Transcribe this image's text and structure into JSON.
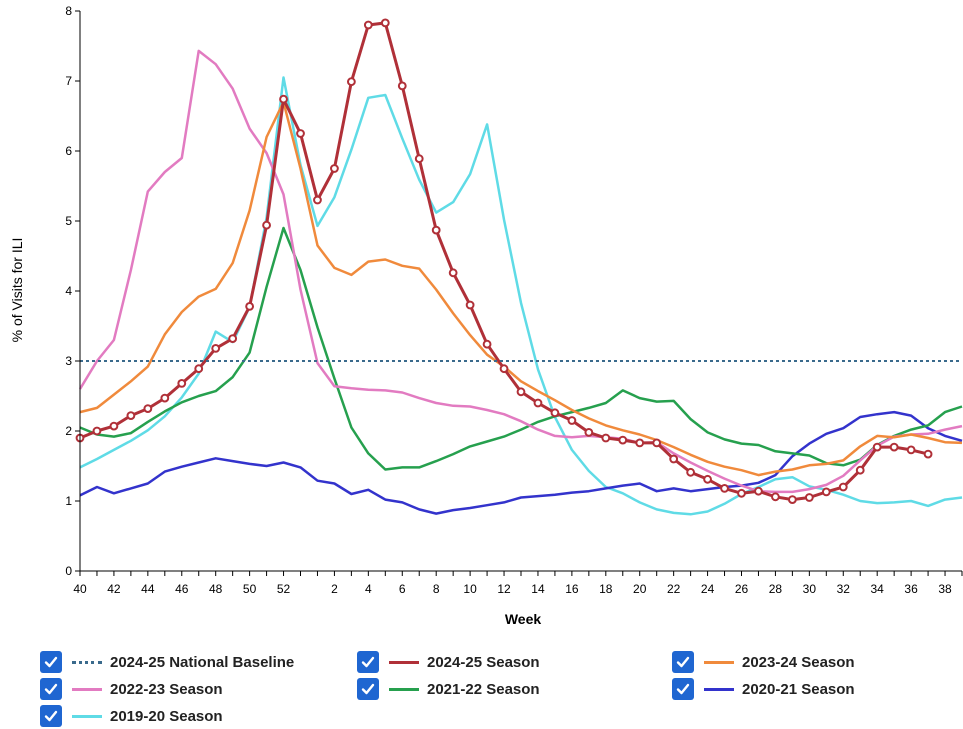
{
  "chart_data": {
    "type": "line",
    "xlabel": "Week",
    "ylabel": "% of Visits for ILI",
    "ylim": [
      0,
      8
    ],
    "yticks": [
      0,
      1,
      2,
      3,
      4,
      5,
      6,
      7,
      8
    ],
    "grid": false,
    "legend_position": "bottom",
    "weeks": [
      40,
      41,
      42,
      43,
      44,
      45,
      46,
      47,
      48,
      49,
      50,
      51,
      52,
      53,
      1,
      2,
      3,
      4,
      5,
      6,
      7,
      8,
      9,
      10,
      11,
      12,
      13,
      14,
      15,
      16,
      17,
      18,
      19,
      20,
      21,
      22,
      23,
      24,
      25,
      26,
      27,
      28,
      29,
      30,
      31,
      32,
      33,
      34,
      35,
      36,
      37,
      38,
      39
    ],
    "xtick_labels": [
      "40",
      "42",
      "44",
      "46",
      "48",
      "50",
      "52",
      "2",
      "4",
      "6",
      "8",
      "10",
      "12",
      "14",
      "16",
      "18",
      "20",
      "22",
      "24",
      "26",
      "28",
      "30",
      "32",
      "34",
      "36",
      "38"
    ],
    "baseline": {
      "name": "2024-25 National Baseline",
      "value": 3.0,
      "color": "#3a6a8c"
    },
    "series": [
      {
        "name": "2024-25 Season",
        "color": "#b03038",
        "markers": true,
        "values": [
          1.9,
          2.0,
          2.07,
          2.22,
          2.32,
          2.47,
          2.68,
          2.89,
          3.18,
          3.32,
          3.78,
          4.94,
          6.74,
          6.25,
          5.3,
          5.75,
          6.99,
          7.8,
          7.83,
          6.93,
          5.89,
          4.87,
          4.26,
          3.8,
          3.24,
          2.89,
          2.56,
          2.4,
          2.26,
          2.15,
          1.98,
          1.9,
          1.87,
          1.83,
          1.83,
          1.6,
          1.41,
          1.31,
          1.18,
          1.11,
          1.14,
          1.06,
          1.02,
          1.05,
          1.13,
          1.2,
          1.44,
          1.77,
          1.77,
          1.73,
          1.67
        ]
      },
      {
        "name": "2023-24 Season",
        "color": "#f08a3c",
        "markers": false,
        "values": [
          2.27,
          2.33,
          2.52,
          2.71,
          2.92,
          3.38,
          3.7,
          3.92,
          4.03,
          4.4,
          5.15,
          6.2,
          6.7,
          5.75,
          4.65,
          4.33,
          4.23,
          4.42,
          4.45,
          4.36,
          4.32,
          4.02,
          3.68,
          3.37,
          3.09,
          2.92,
          2.71,
          2.57,
          2.44,
          2.3,
          2.18,
          2.08,
          2.01,
          1.95,
          1.87,
          1.77,
          1.66,
          1.56,
          1.49,
          1.44,
          1.37,
          1.42,
          1.45,
          1.51,
          1.53,
          1.58,
          1.78,
          1.93,
          1.91,
          1.95,
          1.9,
          1.84,
          1.83
        ]
      },
      {
        "name": "2022-23 Season",
        "color": "#e27bc1",
        "markers": false,
        "values": [
          2.6,
          3.0,
          3.3,
          4.3,
          5.42,
          5.7,
          5.9,
          7.43,
          7.24,
          6.89,
          6.32,
          5.97,
          5.38,
          4.02,
          2.97,
          2.64,
          2.61,
          2.59,
          2.58,
          2.55,
          2.47,
          2.4,
          2.36,
          2.35,
          2.3,
          2.24,
          2.14,
          2.02,
          1.93,
          1.91,
          1.93,
          1.91,
          1.89,
          1.83,
          1.84,
          1.68,
          1.55,
          1.43,
          1.32,
          1.22,
          1.14,
          1.13,
          1.13,
          1.17,
          1.23,
          1.36,
          1.58,
          1.79,
          1.92,
          1.95,
          1.96,
          2.02,
          2.07
        ]
      },
      {
        "name": "2021-22 Season",
        "color": "#26a04e",
        "markers": false,
        "values": [
          2.05,
          1.95,
          1.92,
          1.97,
          2.13,
          2.28,
          2.41,
          2.5,
          2.57,
          2.77,
          3.12,
          4.06,
          4.9,
          4.3,
          3.48,
          2.75,
          2.05,
          1.68,
          1.45,
          1.48,
          1.48,
          1.57,
          1.67,
          1.78,
          1.85,
          1.92,
          2.02,
          2.13,
          2.21,
          2.27,
          2.33,
          2.4,
          2.58,
          2.47,
          2.42,
          2.43,
          2.17,
          1.98,
          1.88,
          1.82,
          1.8,
          1.71,
          1.68,
          1.65,
          1.54,
          1.51,
          1.59,
          1.8,
          1.93,
          2.02,
          2.08,
          2.27,
          2.35
        ]
      },
      {
        "name": "2020-21 Season",
        "color": "#3333cc",
        "markers": false,
        "values": [
          1.08,
          1.2,
          1.11,
          1.18,
          1.25,
          1.42,
          1.49,
          1.55,
          1.61,
          1.57,
          1.53,
          1.5,
          1.55,
          1.48,
          1.29,
          1.25,
          1.1,
          1.16,
          1.02,
          0.98,
          0.88,
          0.82,
          0.87,
          0.9,
          0.94,
          0.98,
          1.05,
          1.07,
          1.09,
          1.12,
          1.14,
          1.18,
          1.22,
          1.25,
          1.14,
          1.18,
          1.14,
          1.17,
          1.2,
          1.22,
          1.26,
          1.37,
          1.64,
          1.82,
          1.96,
          2.04,
          2.2,
          2.24,
          2.27,
          2.22,
          2.04,
          1.93,
          1.86
        ]
      },
      {
        "name": "2019-20 Season",
        "color": "#5fdbe6",
        "markers": false,
        "values": [
          1.48,
          1.6,
          1.73,
          1.86,
          2.01,
          2.21,
          2.48,
          2.82,
          3.42,
          3.27,
          3.77,
          5.05,
          7.05,
          5.8,
          4.93,
          5.34,
          6.02,
          6.76,
          6.8,
          6.18,
          5.59,
          5.12,
          5.27,
          5.67,
          6.38,
          5.02,
          3.83,
          2.88,
          2.2,
          1.73,
          1.43,
          1.2,
          1.11,
          0.98,
          0.88,
          0.83,
          0.81,
          0.85,
          0.96,
          1.1,
          1.2,
          1.31,
          1.34,
          1.21,
          1.16,
          1.09,
          1.0,
          0.97,
          0.98,
          1.0,
          0.93,
          1.02,
          1.05
        ]
      }
    ]
  },
  "legend": {
    "items": [
      {
        "label": "2024-25 National Baseline",
        "color": "#3a6a8c",
        "style": "dotted"
      },
      {
        "label": "2024-25 Season",
        "color": "#b03038",
        "style": "solid"
      },
      {
        "label": "2023-24 Season",
        "color": "#f08a3c",
        "style": "solid"
      },
      {
        "label": "2022-23 Season",
        "color": "#e27bc1",
        "style": "solid"
      },
      {
        "label": "2021-22 Season",
        "color": "#26a04e",
        "style": "solid"
      },
      {
        "label": "2020-21 Season",
        "color": "#3333cc",
        "style": "solid"
      },
      {
        "label": "2019-20 Season",
        "color": "#5fdbe6",
        "style": "solid"
      }
    ]
  }
}
